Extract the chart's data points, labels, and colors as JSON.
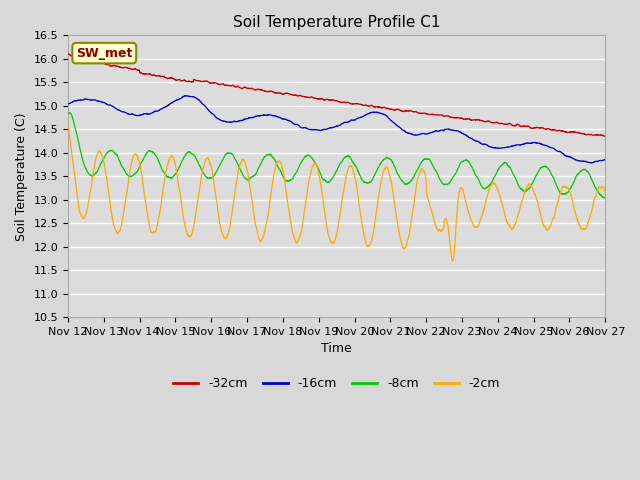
{
  "title": "Soil Temperature Profile C1",
  "xlabel": "Time",
  "ylabel": "Soil Temperature (C)",
  "ylim": [
    10.5,
    16.5
  ],
  "yticks": [
    10.5,
    11.0,
    11.5,
    12.0,
    12.5,
    13.0,
    13.5,
    14.0,
    14.5,
    15.0,
    15.5,
    16.0,
    16.5
  ],
  "xtick_labels": [
    "Nov 12",
    "Nov 13",
    "Nov 14",
    "Nov 15",
    "Nov 16",
    "Nov 17",
    "Nov 18",
    "Nov 19",
    "Nov 20",
    "Nov 21",
    "Nov 22",
    "Nov 23",
    "Nov 24",
    "Nov 25",
    "Nov 26",
    "Nov 27"
  ],
  "colors": {
    "32cm": "#cc0000",
    "16cm": "#0000cc",
    "8cm": "#00cc00",
    "2cm": "#ffaa00"
  },
  "legend_labels": [
    "-32cm",
    "-16cm",
    "-8cm",
    "-2cm"
  ],
  "legend_colors": [
    "#cc0000",
    "#0000cc",
    "#00cc00",
    "#ffaa00"
  ],
  "annotation_text": "SW_met",
  "annotation_bg": "#ffffcc",
  "annotation_border": "#888800",
  "annotation_text_color": "#880000",
  "background_color": "#dcdcdc",
  "grid_color": "#ffffff",
  "fig_bg": "#d8d8d8",
  "title_fontsize": 11,
  "axis_label_fontsize": 9,
  "tick_fontsize": 8,
  "n_points": 3600
}
